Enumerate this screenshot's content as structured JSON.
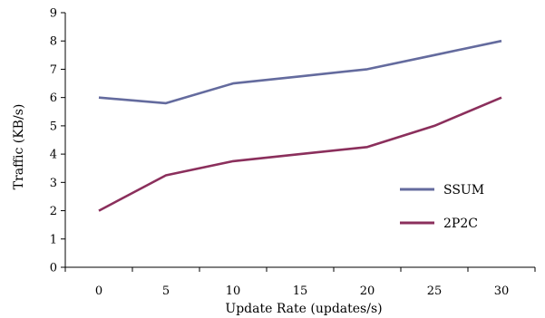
{
  "chart_data": {
    "type": "line",
    "title": "",
    "xlabel": "Update Rate (updates/s)",
    "ylabel": "Traffic (KB/s)",
    "x": [
      0,
      5,
      10,
      15,
      20,
      25,
      30
    ],
    "x_ticks": [
      "0",
      "5",
      "10",
      "15",
      "20",
      "25",
      "30"
    ],
    "y_ticks": [
      "0",
      "1",
      "2",
      "3",
      "4",
      "5",
      "6",
      "7",
      "8",
      "9"
    ],
    "ylim": [
      0,
      9
    ],
    "grid": false,
    "legend_position": "right",
    "series": [
      {
        "name": "SSUM",
        "color": "#646b9e",
        "values": [
          6.0,
          5.8,
          6.5,
          6.75,
          7.0,
          7.5,
          8.0
        ]
      },
      {
        "name": "2P2C",
        "color": "#8b2f5c",
        "values": [
          2.0,
          3.25,
          3.75,
          4.0,
          4.25,
          5.0,
          6.0
        ]
      }
    ]
  }
}
